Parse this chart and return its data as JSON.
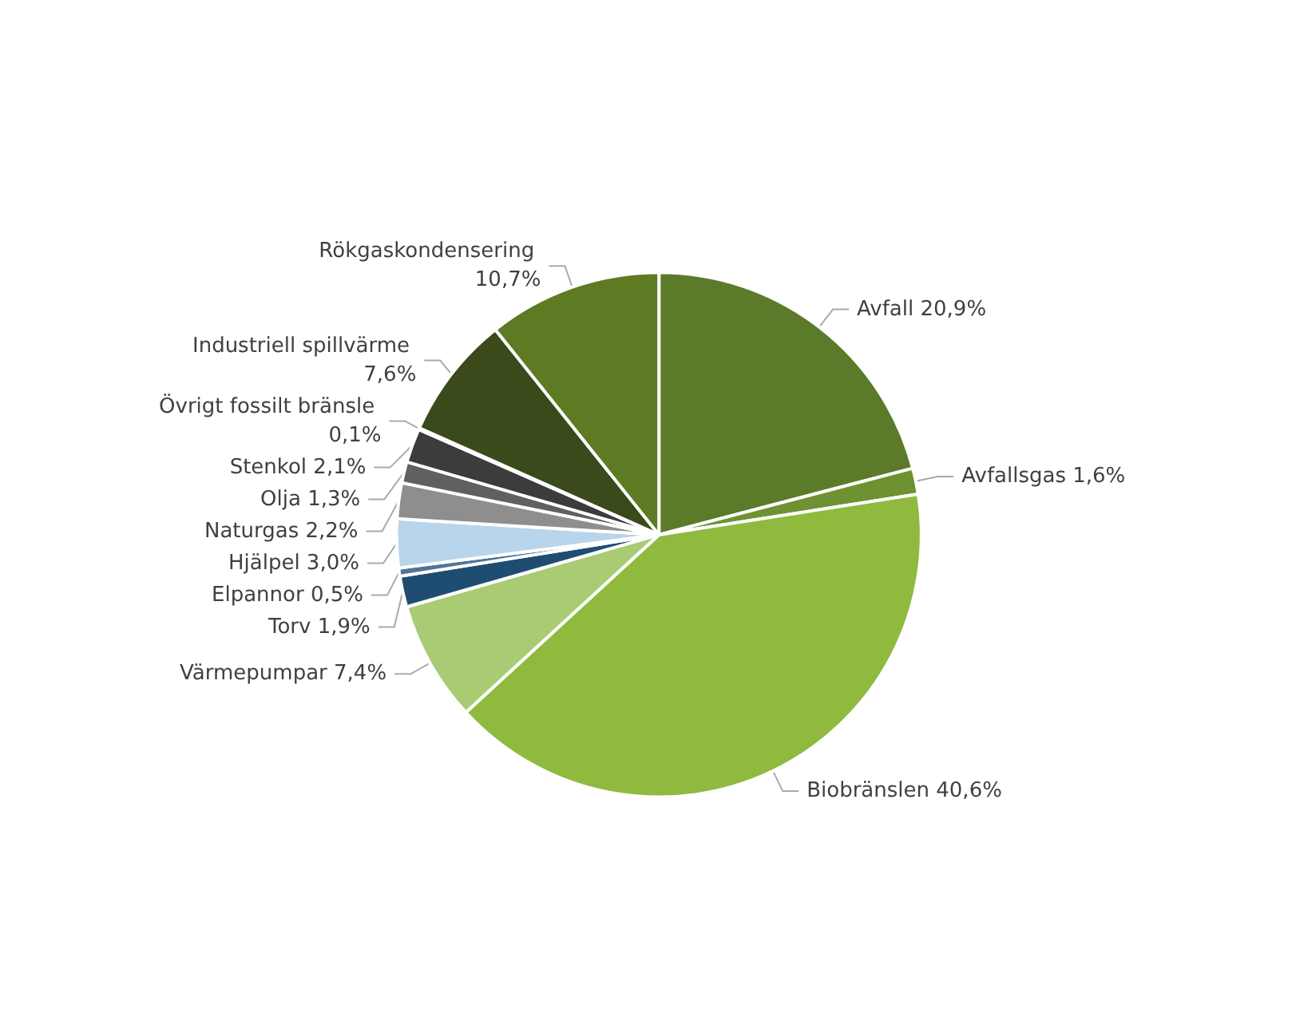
{
  "chart_data": {
    "type": "pie",
    "categories": [
      "Avfall",
      "Avfallsgas",
      "Biobränslen",
      "Värmepumpar",
      "Torv",
      "Elpannor",
      "Hjälpel",
      "Naturgas",
      "Olja",
      "Stenkol",
      "Övrigt fossilt bränsle",
      "Industriell spillvärme",
      "Rökgaskondensering"
    ],
    "values": [
      20.9,
      1.6,
      40.6,
      7.4,
      1.9,
      0.5,
      3.0,
      2.2,
      1.3,
      2.1,
      0.1,
      7.6,
      10.7
    ],
    "value_labels": [
      "20,9%",
      "1,6%",
      "40,6%",
      "7,4%",
      "1,9%",
      "0,5%",
      "3,0%",
      "2,2%",
      "1,3%",
      "2,1%",
      "0,1%",
      "7,6%",
      "10,7%"
    ],
    "colors": [
      "#5b7b2a",
      "#6e9231",
      "#8fba3e",
      "#a8cb74",
      "#1f4d72",
      "#4f7598",
      "#b9d5eb",
      "#8e8e8e",
      "#606060",
      "#3c3c3c",
      "#2a2a2a",
      "#3b4a1b",
      "#5e7b24"
    ],
    "legend": false
  }
}
